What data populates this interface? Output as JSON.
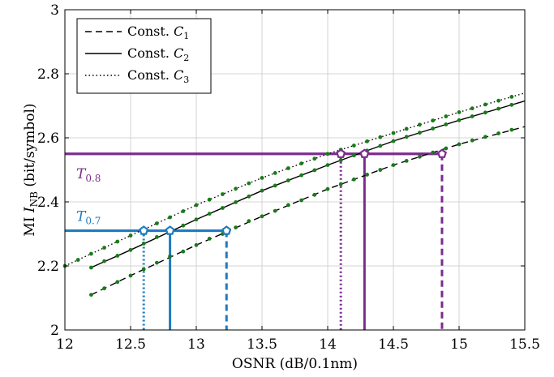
{
  "chart_data": {
    "type": "line",
    "xlabel": "OSNR (dB/0.1nm)",
    "ylabel_pre": "MI ",
    "ylabel_sym": "I",
    "ylabel_sub": "NB",
    "ylabel_post": " (bit/symbol)",
    "xlim": [
      12,
      15.5
    ],
    "ylim": [
      2,
      3
    ],
    "xticks": [
      12,
      12.5,
      13,
      13.5,
      14,
      14.5,
      15,
      15.5
    ],
    "xtick_labels": [
      "12",
      "12.5",
      "13",
      "13.5",
      "14",
      "14.5",
      "15",
      "15.5"
    ],
    "yticks": [
      2,
      2.2,
      2.4,
      2.6,
      2.8,
      3
    ],
    "ytick_labels": [
      "2",
      "2.2",
      "2.4",
      "2.6",
      "2.8",
      "3"
    ],
    "grid": true,
    "legend_position": "top-left",
    "series": [
      {
        "name": "Const. C1",
        "legend_prefix": "Const. ",
        "legend_sym": "C",
        "legend_sub": "1",
        "style": "dashed",
        "x": [
          12.2,
          12.5,
          13.0,
          13.5,
          14.0,
          14.5,
          15.0,
          15.5
        ],
        "y": [
          2.11,
          2.17,
          2.265,
          2.355,
          2.44,
          2.515,
          2.58,
          2.635
        ]
      },
      {
        "name": "Const. C2",
        "legend_prefix": "Const. ",
        "legend_sym": "C",
        "legend_sub": "2",
        "style": "solid",
        "x": [
          12.2,
          12.5,
          13.0,
          13.5,
          14.0,
          14.5,
          15.0,
          15.5
        ],
        "y": [
          2.195,
          2.25,
          2.345,
          2.435,
          2.515,
          2.59,
          2.655,
          2.715
        ]
      },
      {
        "name": "Const. C3",
        "legend_prefix": "Const. ",
        "legend_sym": "C",
        "legend_sub": "3",
        "style": "dotted",
        "x": [
          12.0,
          12.5,
          13.0,
          13.5,
          14.0,
          14.5,
          15.0,
          15.5
        ],
        "y": [
          2.2,
          2.295,
          2.39,
          2.475,
          2.55,
          2.615,
          2.68,
          2.74
        ]
      }
    ],
    "markers": {
      "series": [
        {
          "x": [
            12.2,
            12.3,
            12.4,
            12.5,
            12.6,
            12.7,
            12.8,
            12.9,
            13.0,
            13.1,
            13.2,
            13.3,
            13.4,
            13.5,
            13.6,
            13.7,
            13.8,
            13.9,
            14.0,
            14.1,
            14.2,
            14.3,
            14.4,
            14.5,
            14.6,
            14.7,
            14.8,
            14.9,
            15.0,
            15.1,
            15.2,
            15.3,
            15.4
          ],
          "y": [
            2.11,
            2.13,
            2.15,
            2.17,
            2.19,
            2.21,
            2.23,
            2.245,
            2.265,
            2.285,
            2.3,
            2.32,
            2.34,
            2.355,
            2.372,
            2.39,
            2.405,
            2.422,
            2.44,
            2.455,
            2.47,
            2.485,
            2.5,
            2.515,
            2.528,
            2.541,
            2.554,
            2.567,
            2.58,
            2.592,
            2.603,
            2.614,
            2.625
          ]
        },
        {
          "x": [
            12.2,
            12.3,
            12.4,
            12.5,
            12.6,
            12.7,
            12.8,
            12.9,
            13.0,
            13.1,
            13.2,
            13.3,
            13.4,
            13.5,
            13.6,
            13.7,
            13.8,
            13.9,
            14.0,
            14.1,
            14.2,
            14.3,
            14.4,
            14.5,
            14.6,
            14.7,
            14.8,
            14.9,
            15.0,
            15.1,
            15.2,
            15.3,
            15.4
          ],
          "y": [
            2.195,
            2.215,
            2.232,
            2.25,
            2.27,
            2.29,
            2.308,
            2.326,
            2.345,
            2.363,
            2.381,
            2.399,
            2.417,
            2.435,
            2.451,
            2.467,
            2.483,
            2.499,
            2.515,
            2.53,
            2.545,
            2.56,
            2.575,
            2.59,
            2.603,
            2.616,
            2.629,
            2.642,
            2.655,
            2.667,
            2.679,
            2.691,
            2.703
          ]
        },
        {
          "x": [
            12.0,
            12.1,
            12.2,
            12.3,
            12.4,
            12.5,
            12.6,
            12.7,
            12.8,
            12.9,
            13.0,
            13.1,
            13.2,
            13.3,
            13.4,
            13.5,
            13.6,
            13.7,
            13.8,
            13.9,
            14.0,
            14.1,
            14.2,
            14.3,
            14.4,
            14.5,
            14.6,
            14.7,
            14.8,
            14.9,
            15.0,
            15.1,
            15.2,
            15.3,
            15.4
          ],
          "y": [
            2.2,
            2.219,
            2.238,
            2.257,
            2.276,
            2.295,
            2.314,
            2.333,
            2.352,
            2.371,
            2.39,
            2.407,
            2.424,
            2.441,
            2.458,
            2.475,
            2.49,
            2.505,
            2.52,
            2.535,
            2.55,
            2.563,
            2.576,
            2.589,
            2.602,
            2.615,
            2.628,
            2.641,
            2.654,
            2.667,
            2.68,
            2.692,
            2.704,
            2.716,
            2.728
          ]
        }
      ],
      "color": "#1a7a1a"
    },
    "thresholds": [
      {
        "label_sym": "T",
        "label_sub": "0.8",
        "y": 2.55,
        "color": "#7b2d8e",
        "crossings": [
          {
            "x": 14.1,
            "style": "dotted"
          },
          {
            "x": 14.28,
            "style": "solid"
          },
          {
            "x": 14.87,
            "style": "dashed"
          }
        ]
      },
      {
        "label_sym": "T",
        "label_sub": "0.7",
        "y": 2.31,
        "color": "#1f7bbf",
        "crossings": [
          {
            "x": 12.6,
            "style": "dotted"
          },
          {
            "x": 12.8,
            "style": "solid"
          },
          {
            "x": 13.23,
            "style": "dashed"
          }
        ]
      }
    ]
  }
}
